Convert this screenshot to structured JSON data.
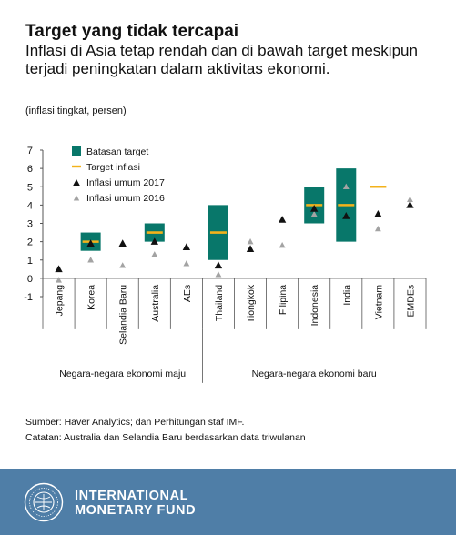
{
  "header": {
    "title": "Target yang tidak tercapai",
    "subtitle": "Inflasi di Asia tetap rendah dan di bawah target meskipun terjadi peningkatan dalam aktivitas ekonomi.",
    "units": "(inflasi tingkat, persen)"
  },
  "chart_data": {
    "type": "scatter",
    "categories": [
      "Jepang",
      "Korea",
      "Selandia Baru",
      "Australia",
      "AEs",
      "Thailand",
      "Tiongkok",
      "Filipina",
      "Indonesia",
      "India",
      "Vietnam",
      "EMDEs"
    ],
    "ylim": [
      -1,
      7
    ],
    "yticks": [
      -1,
      0,
      1,
      2,
      3,
      4,
      5,
      6,
      7
    ],
    "legend": {
      "position": "top-left",
      "entries": [
        {
          "key": "band",
          "label": "Batasan target"
        },
        {
          "key": "target",
          "label": "Target inflasi"
        },
        {
          "key": "y2017",
          "label": "Inflasi umum 2017"
        },
        {
          "key": "y2016",
          "label": "Inflasi umum 2016"
        }
      ]
    },
    "target_band": [
      null,
      [
        1.5,
        2.5
      ],
      null,
      [
        2,
        3
      ],
      null,
      [
        1,
        4
      ],
      null,
      null,
      [
        3,
        5
      ],
      [
        2,
        6
      ],
      null,
      null
    ],
    "target": [
      null,
      2,
      null,
      2.5,
      null,
      2.5,
      null,
      null,
      4,
      4,
      5,
      null
    ],
    "series": [
      {
        "name": "Inflasi umum 2017",
        "values": [
          0.5,
          1.9,
          1.9,
          2.0,
          1.7,
          0.7,
          1.6,
          3.2,
          3.8,
          3.4,
          3.5,
          4.0
        ]
      },
      {
        "name": "Inflasi umum 2016",
        "values": [
          -0.1,
          1.0,
          0.7,
          1.3,
          0.8,
          0.2,
          2.0,
          1.8,
          3.5,
          5.0,
          2.7,
          4.3
        ]
      }
    ],
    "groups": [
      {
        "label": "Negara-negara ekonomi maju",
        "from": 0,
        "to": 4
      },
      {
        "label": "Negara-negara ekonomi baru",
        "from": 5,
        "to": 11
      }
    ],
    "colors": {
      "band": "#08776a",
      "target": "#f3b21b",
      "y2017": "#111111",
      "y2016": "#a3a3a3"
    }
  },
  "notes": {
    "source": "Sumber: Haver Analytics; dan Perhitungan staf IMF.",
    "note": "Catatan: Australia dan Selandia Baru berdasarkan data triwulanan"
  },
  "brand": {
    "line1": "INTERNATIONAL",
    "line2": "MONETARY FUND",
    "seal_icon": "imf-seal-icon",
    "bar_color": "#4f7ea7"
  }
}
